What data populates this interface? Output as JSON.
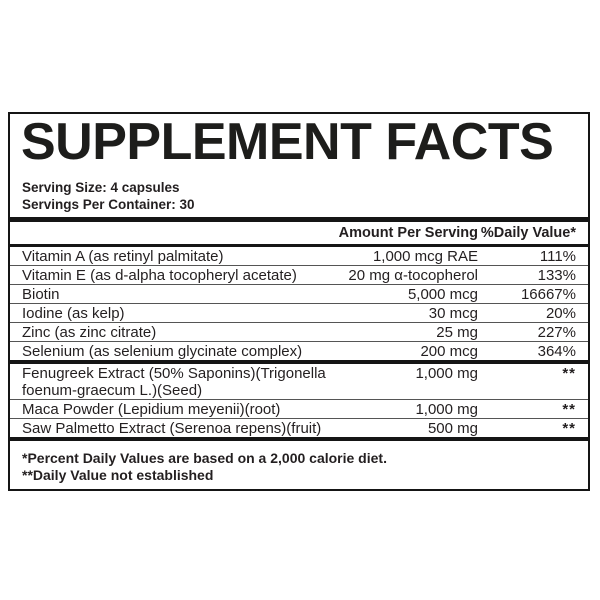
{
  "panel": {
    "title": "SUPPLEMENT FACTS",
    "serving_size": "Serving Size: 4 capsules",
    "servings_per_container": "Servings Per Container: 30",
    "columns": {
      "amount": "Amount Per Serving",
      "daily_value": "%Daily Value*"
    },
    "vitamin_rows": [
      {
        "name": "Vitamin A (as retinyl palmitate)",
        "amount": "1,000 mcg RAE",
        "dv": "111%"
      },
      {
        "name": "Vitamin E (as d-alpha tocopheryl acetate)",
        "amount": "20 mg α-tocopherol",
        "dv": "133%"
      },
      {
        "name": "Biotin",
        "amount": "5,000 mcg",
        "dv": "16667%"
      },
      {
        "name": "Iodine (as kelp)",
        "amount": "30 mcg",
        "dv": "20%"
      },
      {
        "name": "Zinc (as zinc citrate)",
        "amount": "25 mg",
        "dv": "227%"
      },
      {
        "name": "Selenium (as selenium glycinate complex)",
        "amount": "200 mcg",
        "dv": "364%"
      }
    ],
    "botanical_rows": [
      {
        "name": "Fenugreek Extract (50% Saponins)(Trigonella foenum-graecum L.)(Seed)",
        "amount": "1,000 mg",
        "dv": "**"
      },
      {
        "name": "Maca Powder (Lepidium meyenii)(root)",
        "amount": "1,000 mg",
        "dv": "**"
      },
      {
        "name": "Saw Palmetto Extract (Serenoa repens)(fruit)",
        "amount": "500 mg",
        "dv": "**"
      }
    ],
    "footnotes": [
      "*Percent Daily Values are based on a 2,000 calorie diet.",
      "**Daily Value not established"
    ],
    "colors": {
      "text": "#231f20",
      "border": "#151515",
      "thin_divider": "#555555",
      "background": "#ffffff"
    }
  }
}
